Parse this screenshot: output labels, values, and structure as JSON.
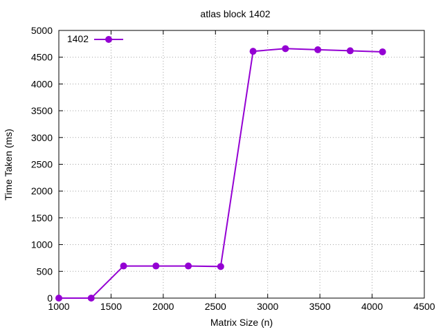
{
  "chart_data": {
    "type": "line",
    "title": "atlas block 1402",
    "xlabel": "Matrix Size (n)",
    "ylabel": "Time Taken (ms)",
    "xlim": [
      1000,
      4500
    ],
    "ylim": [
      0,
      5000
    ],
    "xticks": [
      1000,
      1500,
      2000,
      2500,
      3000,
      3500,
      4000,
      4500
    ],
    "yticks": [
      0,
      500,
      1000,
      1500,
      2000,
      2500,
      3000,
      3500,
      4000,
      4500,
      5000
    ],
    "grid": true,
    "legend_position": "top-left",
    "series": [
      {
        "name": "1402",
        "color": "#9400d3",
        "marker": "circle",
        "x": [
          1000,
          1310,
          1620,
          1930,
          2240,
          2550,
          2860,
          3170,
          3480,
          3790,
          4100
        ],
        "y": [
          0,
          0,
          600,
          600,
          600,
          590,
          4610,
          4660,
          4640,
          4620,
          4600
        ]
      }
    ]
  }
}
